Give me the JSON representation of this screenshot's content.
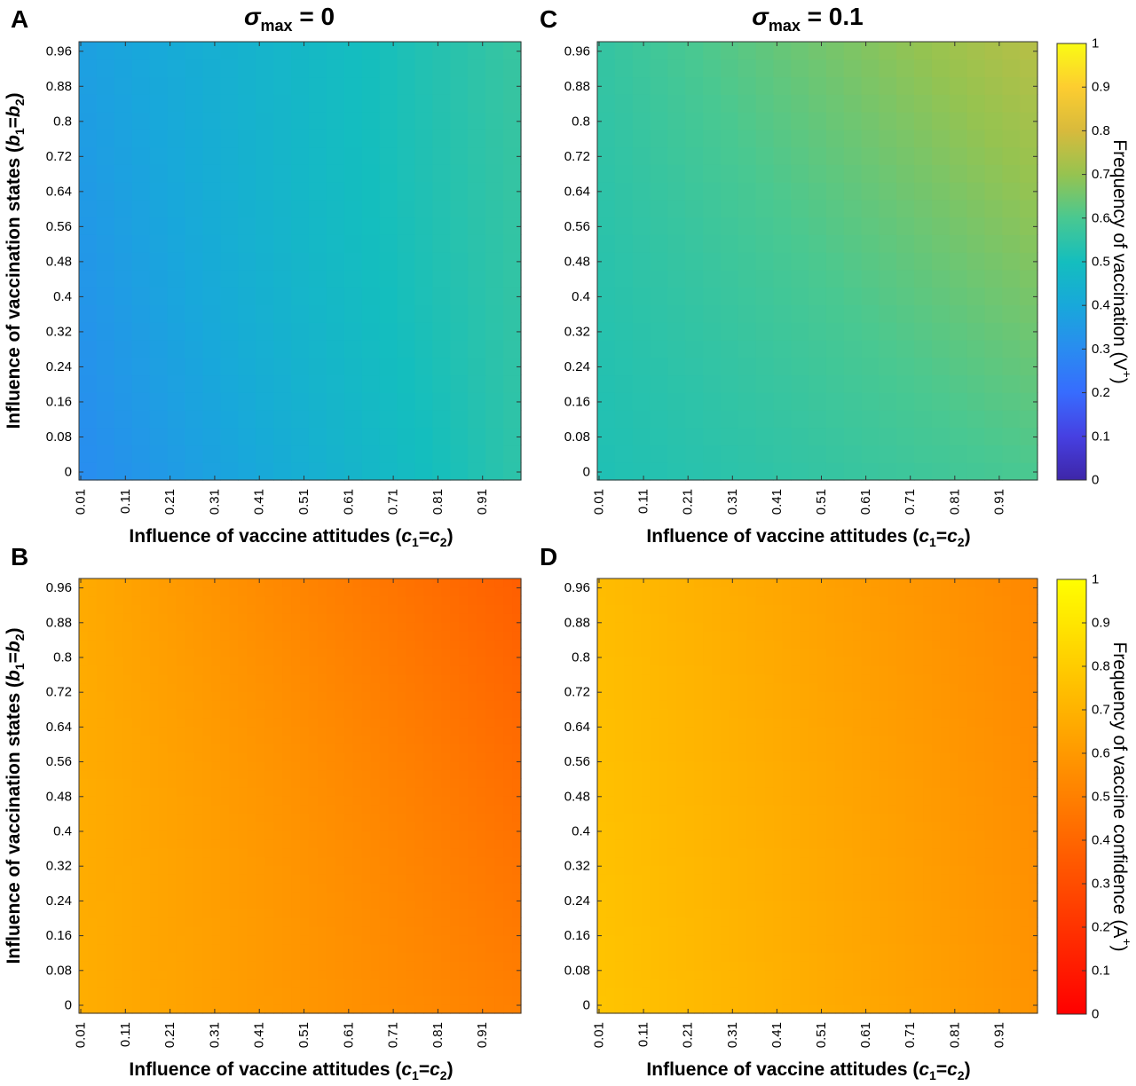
{
  "column_titles": [
    {
      "symbol": "σ",
      "sub": "max",
      "rest": " = 0"
    },
    {
      "symbol": "σ",
      "sub": "max",
      "rest": " = 0.1"
    }
  ],
  "x_tick_labels": [
    "0.01",
    "0.11",
    "0.21",
    "0.31",
    "0.41",
    "0.51",
    "0.61",
    "0.71",
    "0.81",
    "0.91"
  ],
  "y_tick_labels": [
    "0",
    "0.08",
    "0.16",
    "0.24",
    "0.32",
    "0.4",
    "0.48",
    "0.56",
    "0.64",
    "0.72",
    "0.8",
    "0.88",
    "0.96"
  ],
  "colorbar_ticks": [
    "0",
    "0.1",
    "0.2",
    "0.3",
    "0.4",
    "0.5",
    "0.6",
    "0.7",
    "0.8",
    "0.9",
    "1"
  ],
  "ylabel": {
    "prefix": "Influence of vaccination states (",
    "v1": "b",
    "s1": "1",
    "eq": "=",
    "v2": "b",
    "s2": "2",
    "suffix": ")"
  },
  "xlabel": {
    "prefix": "Influence of vaccine attitudes (",
    "v1": "c",
    "s1": "1",
    "eq": "=",
    "v2": "c",
    "s2": "2",
    "suffix": ")"
  },
  "colorbars": [
    {
      "title": "Frequency of vaccination (V+)",
      "base": "Frequency of vaccination (V",
      "sup": "+",
      "end": ")",
      "colormap": "parula"
    },
    {
      "title": "Frequency of vaccine confidence (A+)",
      "base": "Frequency of vaccine confidence (A",
      "sup": "+",
      "end": ")",
      "colormap": "autumn"
    }
  ],
  "chart_data": [
    {
      "panel": "A",
      "type": "heatmap",
      "column_title": "σmax = 0",
      "value_label": "Frequency of vaccination (V+)",
      "x_range": [
        0.01,
        1.0
      ],
      "y_range": [
        0,
        1.0
      ],
      "zlim": [
        0,
        1
      ],
      "colormap": "parula",
      "grid_cells": [
        25,
        25
      ],
      "corners": {
        "x0_y0": 0.3,
        "x1_y0": 0.55,
        "x0_y1": 0.37,
        "x1_y1": 0.57
      },
      "mid_x_value": 0.47,
      "mid_y_value": 0.35
    },
    {
      "panel": "B",
      "type": "heatmap",
      "value_label": "Frequency of vaccine confidence (A+)",
      "x_range": [
        0.01,
        1.0
      ],
      "y_range": [
        0,
        1.0
      ],
      "zlim": [
        0,
        1
      ],
      "colormap": "autumn",
      "grid_cells": [
        50,
        50
      ],
      "corners": {
        "x0_y0": 0.68,
        "x1_y0": 0.5,
        "x0_y1": 0.67,
        "x1_y1": 0.37
      },
      "mid_x_value": 0.58,
      "mid_y_value": 0.6
    },
    {
      "panel": "C",
      "type": "heatmap",
      "column_title": "σmax = 0.1",
      "value_label": "Frequency of vaccination (V+)",
      "x_range": [
        0.01,
        1.0
      ],
      "y_range": [
        0,
        1.0
      ],
      "zlim": [
        0,
        1
      ],
      "colormap": "parula",
      "grid_cells": [
        25,
        25
      ],
      "corners": {
        "x0_y0": 0.52,
        "x1_y0": 0.6,
        "x0_y1": 0.56,
        "x1_y1": 0.75
      },
      "mid_x_value": 0.6,
      "mid_y_value": 0.53
    },
    {
      "panel": "D",
      "type": "heatmap",
      "value_label": "Frequency of vaccine confidence (A+)",
      "x_range": [
        0.01,
        1.0
      ],
      "y_range": [
        0,
        1.0
      ],
      "zlim": [
        0,
        1
      ],
      "colormap": "autumn",
      "grid_cells": [
        50,
        50
      ],
      "corners": {
        "x0_y0": 0.77,
        "x1_y0": 0.58,
        "x0_y1": 0.74,
        "x1_y1": 0.53
      },
      "mid_x_value": 0.66,
      "mid_y_value": 0.66
    }
  ]
}
